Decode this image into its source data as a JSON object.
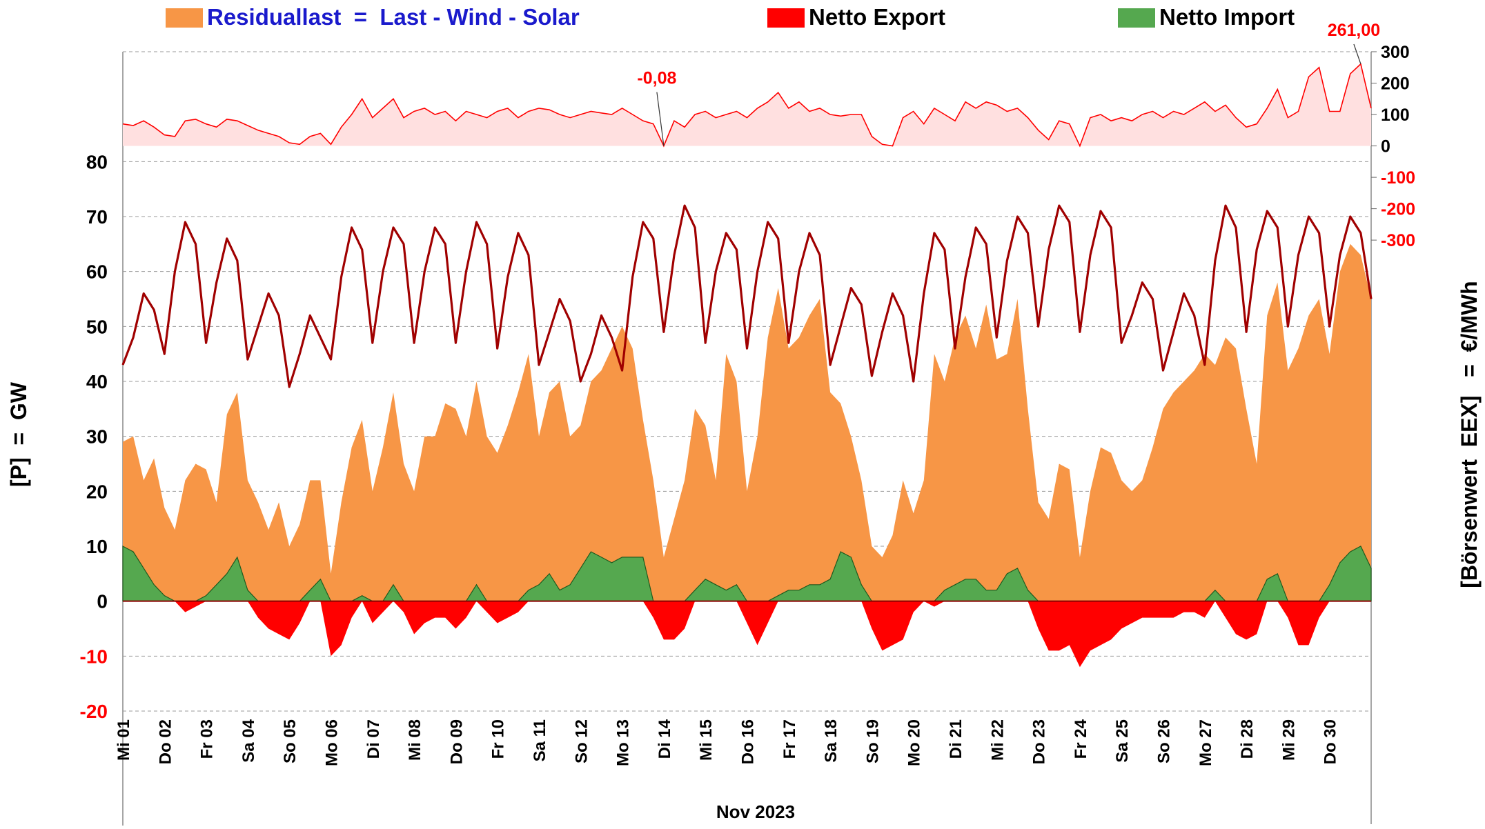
{
  "chart_data": {
    "type": "area",
    "legend": "top",
    "x_label": "Nov 2023",
    "y_label": "[P]  =  GW",
    "y2_label": "[Börsenwert  EEX]   =  €/MWh",
    "xlim": [
      0,
      30
    ],
    "ylim": [
      -20,
      100
    ],
    "yticks": [
      -20,
      -10,
      0,
      10,
      20,
      30,
      40,
      50,
      60,
      70,
      80
    ],
    "y2lim": [
      -1800,
      300
    ],
    "y2ticks": [
      -300,
      -200,
      -100,
      0,
      100,
      200,
      300
    ],
    "negative_tick_color": "#ff0000",
    "grid": true,
    "xticks": [
      {
        "value": 0,
        "label": "Mi 01"
      },
      {
        "value": 1,
        "label": "Do 02"
      },
      {
        "value": 2,
        "label": "Fr 03"
      },
      {
        "value": 3,
        "label": "Sa 04"
      },
      {
        "value": 4,
        "label": "So 05"
      },
      {
        "value": 5,
        "label": "Mo 06"
      },
      {
        "value": 6,
        "label": "Di 07"
      },
      {
        "value": 7,
        "label": "Mi 08"
      },
      {
        "value": 8,
        "label": "Do 09"
      },
      {
        "value": 9,
        "label": "Fr 10"
      },
      {
        "value": 10,
        "label": "Sa 11"
      },
      {
        "value": 11,
        "label": "So 12"
      },
      {
        "value": 12,
        "label": "Mo 13"
      },
      {
        "value": 13,
        "label": "Di 14"
      },
      {
        "value": 14,
        "label": "Mi 15"
      },
      {
        "value": 15,
        "label": "Do 16"
      },
      {
        "value": 16,
        "label": "Fr 17"
      },
      {
        "value": 17,
        "label": "Sa 18"
      },
      {
        "value": 18,
        "label": "So 19"
      },
      {
        "value": 19,
        "label": "Mo 20"
      },
      {
        "value": 20,
        "label": "Di 21"
      },
      {
        "value": 21,
        "label": "Mi 22"
      },
      {
        "value": 22,
        "label": "Do 23"
      },
      {
        "value": 23,
        "label": "Fr 24"
      },
      {
        "value": 24,
        "label": "Sa 25"
      },
      {
        "value": 25,
        "label": "So 26"
      },
      {
        "value": 26,
        "label": "Mo 27"
      },
      {
        "value": 27,
        "label": "Di 28"
      },
      {
        "value": 28,
        "label": "Mi 29"
      },
      {
        "value": 29,
        "label": "Do 30"
      }
    ],
    "x": [
      0,
      0.25,
      0.5,
      0.75,
      1,
      1.25,
      1.5,
      1.75,
      2,
      2.25,
      2.5,
      2.75,
      3,
      3.25,
      3.5,
      3.75,
      4,
      4.25,
      4.5,
      4.75,
      5,
      5.25,
      5.5,
      5.75,
      6,
      6.25,
      6.5,
      6.75,
      7,
      7.25,
      7.5,
      7.75,
      8,
      8.25,
      8.5,
      8.75,
      9,
      9.25,
      9.5,
      9.75,
      10,
      10.25,
      10.5,
      10.75,
      11,
      11.25,
      11.5,
      11.75,
      12,
      12.25,
      12.5,
      12.75,
      13,
      13.25,
      13.5,
      13.75,
      14,
      14.25,
      14.5,
      14.75,
      15,
      15.25,
      15.5,
      15.75,
      16,
      16.25,
      16.5,
      16.75,
      17,
      17.25,
      17.5,
      17.75,
      18,
      18.25,
      18.5,
      18.75,
      19,
      19.25,
      19.5,
      19.75,
      20,
      20.25,
      20.5,
      20.75,
      21,
      21.25,
      21.5,
      21.75,
      22,
      22.25,
      22.5,
      22.75,
      23,
      23.25,
      23.5,
      23.75,
      24,
      24.25,
      24.5,
      24.75,
      25,
      25.25,
      25.5,
      25.75,
      26,
      26.25,
      26.5,
      26.75,
      27,
      27.25,
      27.5,
      27.75,
      28,
      28.25,
      28.5,
      28.75,
      29,
      29.25,
      29.5,
      29.75,
      30
    ],
    "series": [
      {
        "name": "Residuallast  =  Last - Wind - Solar",
        "label_color": "#1a1acc",
        "color": "#f79646",
        "kind": "area",
        "values": [
          29,
          30,
          22,
          26,
          17,
          13,
          22,
          25,
          24,
          18,
          34,
          38,
          22,
          18,
          13,
          18,
          10,
          14,
          22,
          22,
          5,
          18,
          28,
          33,
          20,
          28,
          38,
          25,
          20,
          30,
          30,
          36,
          35,
          30,
          40,
          30,
          27,
          32,
          38,
          45,
          30,
          38,
          40,
          30,
          32,
          40,
          42,
          46,
          50,
          46,
          33,
          22,
          8,
          15,
          22,
          35,
          32,
          22,
          45,
          40,
          20,
          30,
          48,
          57,
          46,
          48,
          52,
          55,
          38,
          36,
          30,
          22,
          10,
          8,
          12,
          22,
          16,
          22,
          45,
          40,
          48,
          52,
          46,
          54,
          44,
          45,
          55,
          35,
          18,
          15,
          25,
          24,
          8,
          20,
          28,
          27,
          22,
          20,
          22,
          28,
          35,
          38,
          40,
          42,
          45,
          43,
          48,
          46,
          35,
          25,
          52,
          58,
          42,
          46,
          52,
          55,
          45,
          60,
          65,
          63,
          55
        ]
      },
      {
        "name": "Netto Export",
        "label_color": "#000000",
        "color": "#ff0000",
        "kind": "area",
        "values": [
          0,
          0,
          0,
          0,
          0,
          0,
          -2,
          -1,
          0,
          0,
          0,
          0,
          0,
          -3,
          -5,
          -6,
          -7,
          -4,
          0,
          0,
          -10,
          -8,
          -3,
          0,
          -4,
          -2,
          0,
          -2,
          -6,
          -4,
          -3,
          -3,
          -5,
          -3,
          0,
          -2,
          -4,
          -3,
          -2,
          0,
          0,
          0,
          0,
          0,
          0,
          0,
          0,
          0,
          0,
          0,
          0,
          -3,
          -7,
          -7,
          -5,
          0,
          0,
          0,
          0,
          0,
          -4,
          -8,
          -4,
          0,
          0,
          0,
          0,
          0,
          0,
          0,
          0,
          0,
          -5,
          -9,
          -8,
          -7,
          -2,
          0,
          -1,
          0,
          0,
          0,
          0,
          0,
          0,
          0,
          0,
          0,
          -5,
          -9,
          -9,
          -8,
          -12,
          -9,
          -8,
          -7,
          -5,
          -4,
          -3,
          -3,
          -3,
          -3,
          -2,
          -2,
          -3,
          0,
          -3,
          -6,
          -7,
          -6,
          0,
          0,
          -3,
          -8,
          -8,
          -3,
          0,
          0,
          0,
          0,
          0
        ]
      },
      {
        "name": "Netto Import",
        "label_color": "#000000",
        "color": "#55a84f",
        "kind": "area",
        "values": [
          10,
          9,
          6,
          3,
          1,
          0,
          0,
          0,
          1,
          3,
          5,
          8,
          2,
          0,
          0,
          0,
          0,
          0,
          2,
          4,
          0,
          0,
          0,
          1,
          0,
          0,
          3,
          0,
          0,
          0,
          0,
          0,
          0,
          0,
          3,
          0,
          0,
          0,
          0,
          2,
          3,
          5,
          2,
          3,
          6,
          9,
          8,
          7,
          8,
          8,
          8,
          0,
          0,
          0,
          0,
          2,
          4,
          3,
          2,
          3,
          0,
          0,
          0,
          1,
          2,
          2,
          3,
          3,
          4,
          9,
          8,
          3,
          0,
          0,
          0,
          0,
          0,
          0,
          0,
          2,
          3,
          4,
          4,
          2,
          2,
          5,
          6,
          2,
          0,
          0,
          0,
          0,
          0,
          0,
          0,
          0,
          0,
          0,
          0,
          0,
          0,
          0,
          0,
          0,
          0,
          2,
          0,
          0,
          0,
          0,
          4,
          5,
          0,
          0,
          0,
          0,
          3,
          7,
          9,
          10,
          6
        ]
      },
      {
        "color": "#a00000",
        "kind": "line",
        "values": [
          43,
          48,
          56,
          53,
          45,
          60,
          69,
          65,
          47,
          58,
          66,
          62,
          44,
          50,
          56,
          52,
          39,
          45,
          52,
          48,
          44,
          59,
          68,
          64,
          47,
          60,
          68,
          65,
          47,
          60,
          68,
          65,
          47,
          60,
          69,
          65,
          46,
          59,
          67,
          63,
          43,
          49,
          55,
          51,
          40,
          45,
          52,
          48,
          42,
          59,
          69,
          66,
          49,
          63,
          72,
          68,
          47,
          60,
          67,
          64,
          46,
          60,
          69,
          66,
          47,
          60,
          67,
          63,
          43,
          50,
          57,
          54,
          41,
          49,
          56,
          52,
          40,
          56,
          67,
          64,
          46,
          59,
          68,
          65,
          48,
          62,
          70,
          67,
          50,
          64,
          72,
          69,
          49,
          63,
          71,
          68,
          47,
          52,
          58,
          55,
          42,
          49,
          56,
          52,
          43,
          62,
          72,
          68,
          49,
          64,
          71,
          68,
          50,
          63,
          70,
          67,
          50,
          63,
          70,
          67,
          55
        ]
      },
      {
        "color": "#ff0000",
        "fill": "#ffe0e0",
        "kind": "area",
        "axis": "y2",
        "values": [
          70,
          65,
          80,
          60,
          35,
          30,
          80,
          85,
          70,
          60,
          85,
          80,
          65,
          50,
          40,
          30,
          10,
          5,
          30,
          40,
          5,
          60,
          100,
          150,
          90,
          120,
          150,
          90,
          110,
          120,
          100,
          110,
          80,
          110,
          100,
          90,
          110,
          120,
          90,
          110,
          120,
          115,
          100,
          90,
          100,
          110,
          105,
          100,
          120,
          100,
          80,
          70,
          -0.08,
          80,
          60,
          100,
          110,
          90,
          100,
          110,
          90,
          120,
          140,
          170,
          120,
          140,
          110,
          120,
          100,
          95,
          100,
          100,
          30,
          5,
          0,
          90,
          110,
          70,
          120,
          100,
          80,
          140,
          120,
          140,
          130,
          110,
          120,
          90,
          50,
          20,
          80,
          70,
          0,
          90,
          100,
          80,
          90,
          80,
          100,
          110,
          90,
          110,
          100,
          120,
          140,
          110,
          130,
          90,
          60,
          70,
          120,
          180,
          90,
          110,
          220,
          250,
          110,
          110,
          230,
          261,
          120
        ]
      }
    ],
    "annotations": [
      {
        "label": "-0,08",
        "x": 13,
        "value": -0.08
      },
      {
        "label": "261,00",
        "x": 29.75,
        "value": 261
      }
    ]
  }
}
